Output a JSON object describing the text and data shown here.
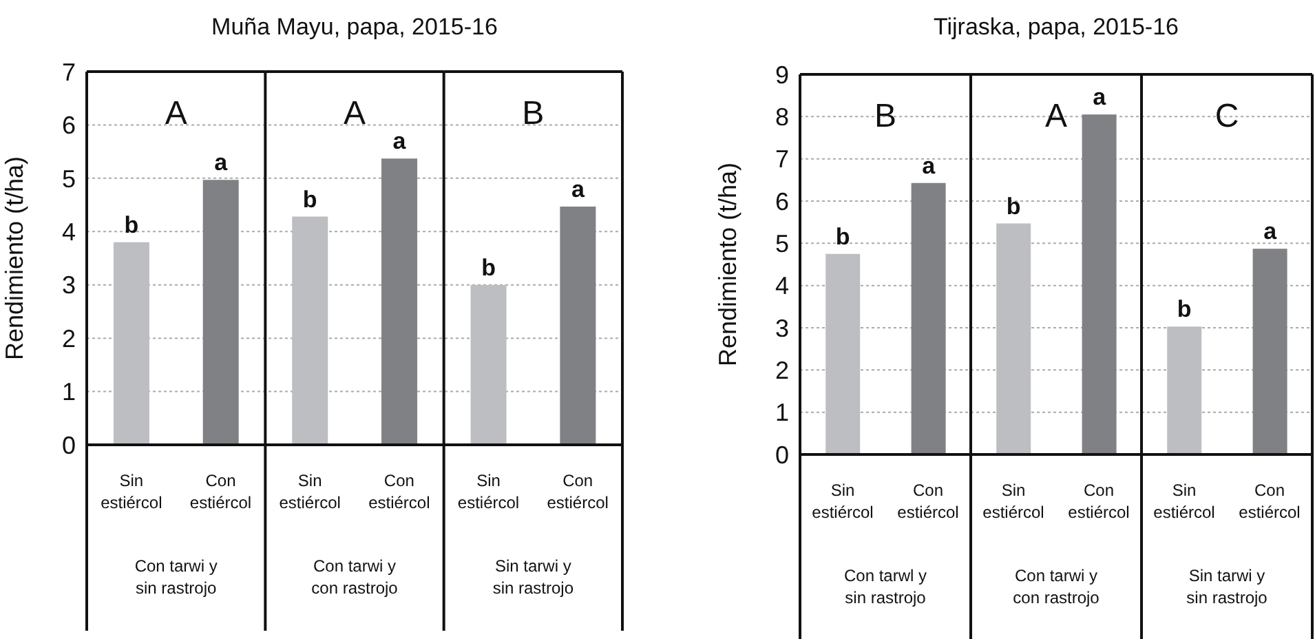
{
  "chart_data": [
    {
      "type": "bar",
      "title": "Muña Mayu, papa, 2015-16",
      "ylabel": "Rendimiento (t/ha)",
      "categories": [
        "Con tarwi y sin rastrojo",
        "Con tarwi y con rastrojo",
        "Sin tarwi y sin rastrojo"
      ],
      "series": [
        {
          "name": "Sin estiércol",
          "color": "#bdbec2",
          "values": [
            3.8,
            4.28,
            3.0
          ],
          "value_labels": [
            "b",
            "b",
            "b"
          ]
        },
        {
          "name": "Con estiércol",
          "color": "#808185",
          "values": [
            4.97,
            5.37,
            4.47
          ],
          "value_labels": [
            "a",
            "a",
            "a"
          ]
        }
      ],
      "ylim": [
        0,
        7
      ],
      "yticks": [
        0,
        1,
        2,
        3,
        4,
        5,
        6,
        7
      ],
      "grid": "y",
      "annotations": [
        "A",
        "A",
        "B"
      ]
    },
    {
      "type": "bar",
      "title": "Tijraska, papa, 2015-16",
      "ylabel": "Rendimiento (t/ha)",
      "categories": [
        "Con tarwl y sin rastrojo",
        "Con tarwi y con rastrojo",
        "Sin tarwi y sin rastrojo"
      ],
      "series": [
        {
          "name": "Sin estiércol",
          "color": "#bdbec2",
          "values": [
            4.75,
            5.47,
            3.03
          ],
          "value_labels": [
            "b",
            "b",
            "b"
          ]
        },
        {
          "name": "Con estiércol",
          "color": "#808185",
          "values": [
            6.43,
            8.05,
            4.87
          ],
          "value_labels": [
            "a",
            "a",
            "a"
          ]
        }
      ],
      "ylim": [
        0,
        9
      ],
      "yticks": [
        0,
        1,
        2,
        3,
        4,
        5,
        6,
        7,
        8,
        9
      ],
      "grid": "y",
      "annotations": [
        "B",
        "A",
        "C"
      ]
    }
  ]
}
